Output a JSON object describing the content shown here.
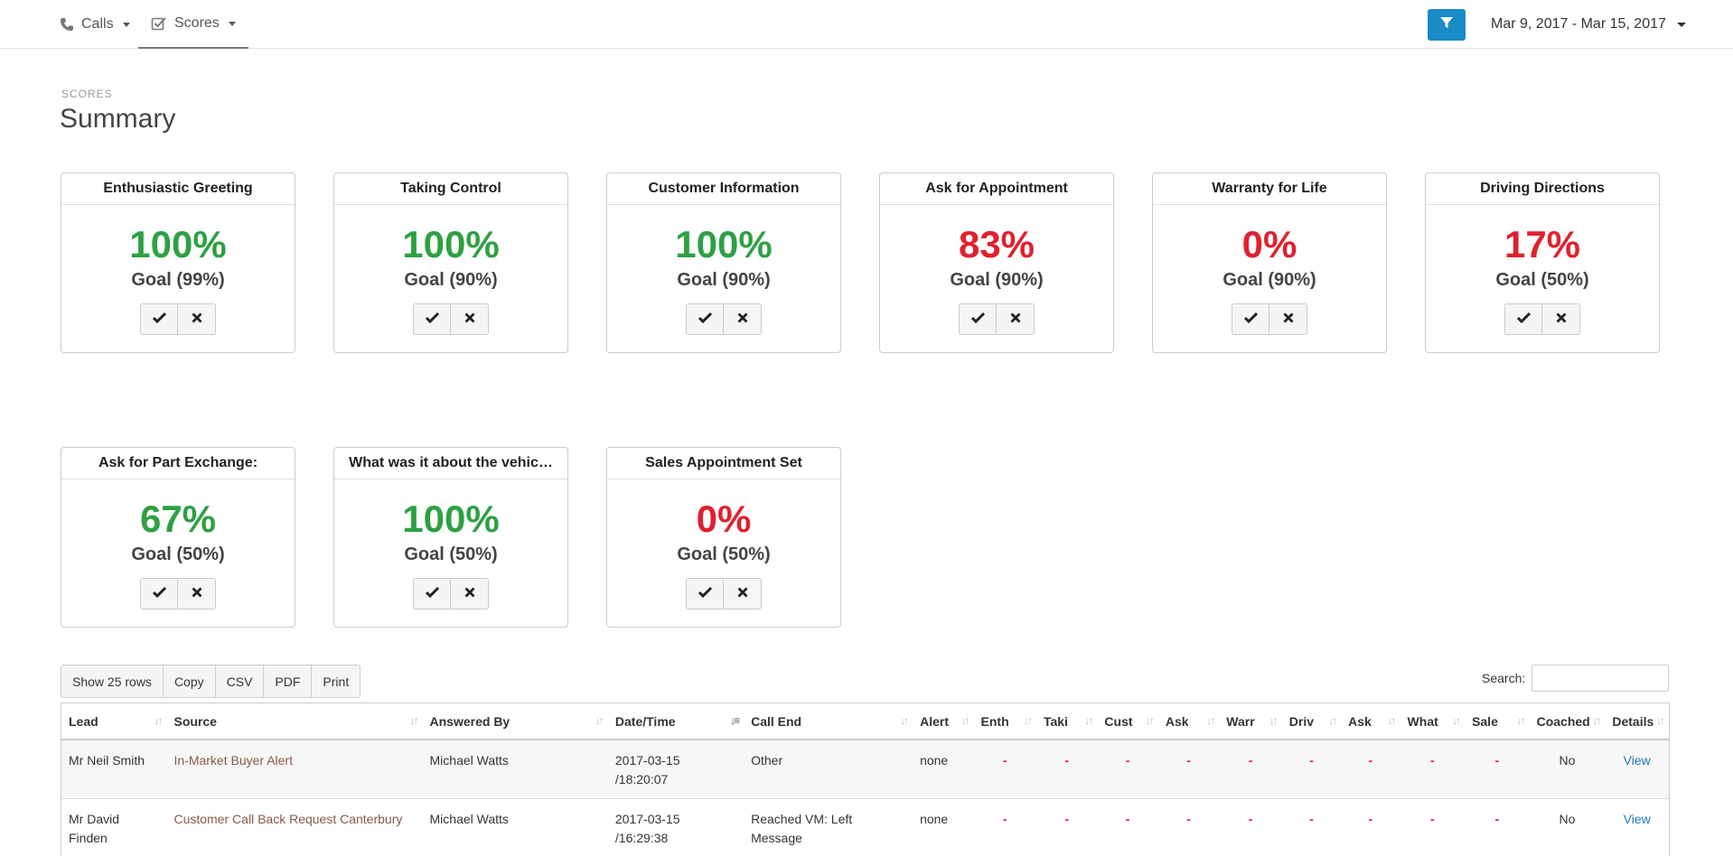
{
  "nav": {
    "calls_label": "Calls",
    "scores_label": "Scores",
    "date_range": "Mar 9, 2017 - Mar 15, 2017"
  },
  "page": {
    "kicker": "SCORES",
    "title": "Summary"
  },
  "colors": {
    "good": "#2ea043",
    "bad": "#e0202e",
    "accent": "#1a8bc7"
  },
  "cards": [
    {
      "title": "Enthusiastic Greeting",
      "percent": "100%",
      "goal": "Goal (99%)",
      "status": "good"
    },
    {
      "title": "Taking Control",
      "percent": "100%",
      "goal": "Goal (90%)",
      "status": "good"
    },
    {
      "title": "Customer Information",
      "percent": "100%",
      "goal": "Goal (90%)",
      "status": "good"
    },
    {
      "title": "Ask for Appointment",
      "percent": "83%",
      "goal": "Goal (90%)",
      "status": "bad"
    },
    {
      "title": "Warranty for Life",
      "percent": "0%",
      "goal": "Goal (90%)",
      "status": "bad"
    },
    {
      "title": "Driving Directions",
      "percent": "17%",
      "goal": "Goal (50%)",
      "status": "bad"
    },
    {
      "title": "Ask for Part Exchange:",
      "percent": "67%",
      "goal": "Goal (50%)",
      "status": "good"
    },
    {
      "title": "What was it about the vehic…",
      "percent": "100%",
      "goal": "Goal (50%)",
      "status": "good"
    },
    {
      "title": "Sales Appointment Set",
      "percent": "0%",
      "goal": "Goal (50%)",
      "status": "bad"
    }
  ],
  "toolbar": {
    "show_rows": "Show 25 rows",
    "copy": "Copy",
    "csv": "CSV",
    "pdf": "PDF",
    "print": "Print",
    "search_label": "Search:"
  },
  "table": {
    "columns": [
      "Lead",
      "Source",
      "Answered By",
      "Date/Time",
      "Call End",
      "Alert",
      "Enth",
      "Taki",
      "Cust",
      "Ask",
      "Warr",
      "Driv",
      "Ask",
      "What",
      "Sale",
      "Coached",
      "Details"
    ],
    "rows": [
      {
        "lead": "Mr Neil Smith",
        "source": "In-Market Buyer Alert",
        "answered_by": "Michael Watts",
        "datetime_line1": "2017-03-15",
        "datetime_line2": "/18:20:07",
        "call_end": "Other",
        "alert": "none",
        "scores": [
          "-",
          "-",
          "-",
          "-",
          "-",
          "-",
          "-",
          "-",
          "-"
        ],
        "coached": "No",
        "details": "View"
      },
      {
        "lead": "Mr David Finden",
        "source": "Customer Call Back Request Canterbury",
        "answered_by": "Michael Watts",
        "datetime_line1": "2017-03-15",
        "datetime_line2": "/16:29:38",
        "call_end": "Reached VM: Left Message",
        "alert": "none",
        "scores": [
          "-",
          "-",
          "-",
          "-",
          "-",
          "-",
          "-",
          "-",
          "-"
        ],
        "coached": "No",
        "details": "View"
      }
    ]
  }
}
